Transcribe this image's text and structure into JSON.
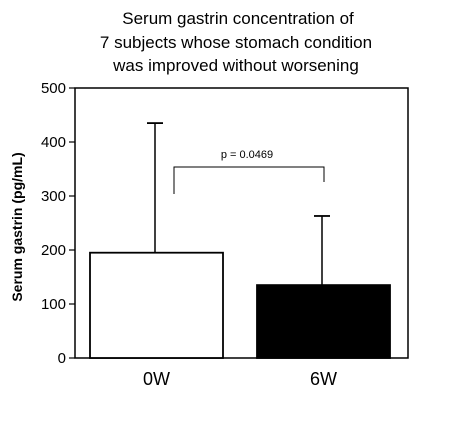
{
  "chart_data": {
    "type": "bar",
    "title_lines": [
      "Serum gastrin concentration of",
      "7 subjects whose stomach condition",
      "was improved without worsening"
    ],
    "ylabel": "Serum gastrin (pg/mL)",
    "xlabel": "",
    "ylim": [
      0,
      500
    ],
    "yticks": [
      0,
      100,
      200,
      300,
      400,
      500
    ],
    "categories": [
      "0W",
      "6W"
    ],
    "values": [
      195,
      135
    ],
    "error_upper": [
      435,
      263
    ],
    "bar_colors": [
      "#ffffff",
      "#000000"
    ],
    "grid": false,
    "annotation": {
      "text": "p = 0.0469",
      "between": [
        "0W",
        "6W"
      ]
    }
  }
}
